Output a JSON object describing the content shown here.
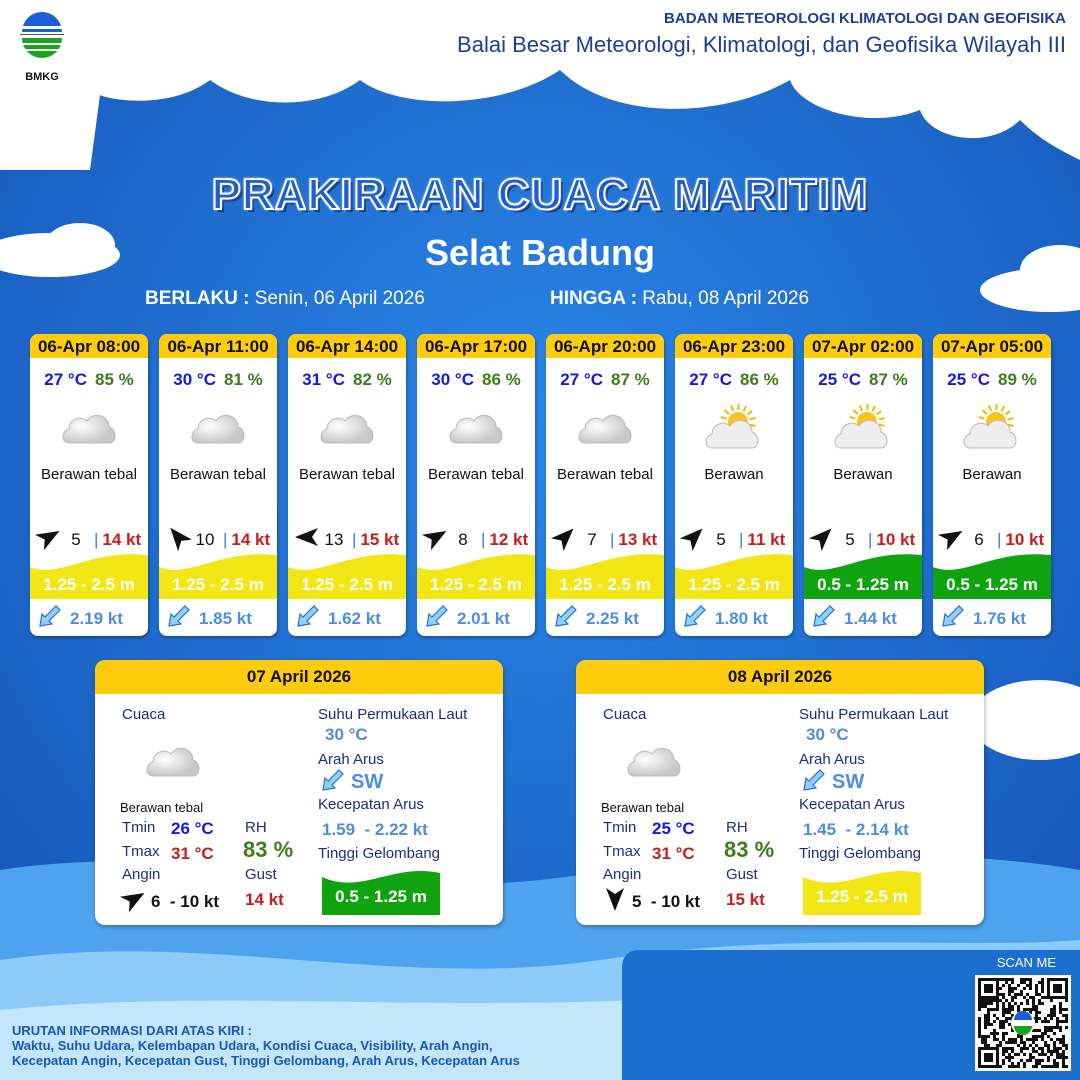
{
  "header": {
    "logo_text": "BMKG",
    "org_line1": "BADAN METEOROLOGI KLIMATOLOGI DAN GEOFISIKA",
    "org_line2": "Balai Besar Meteorologi, Klimatologi, dan Geofisika Wilayah III"
  },
  "title": "PRAKIRAAN CUACA MARITIM",
  "location": "Selat Badung",
  "period": {
    "from_label": "BERLAKU :",
    "from_value": "Senin, 06 April 2026",
    "to_label": "HINGGA :",
    "to_value": "Rabu, 08 April 2026"
  },
  "colors": {
    "header_yellow": "#ffcc0d",
    "wave_yellow": "#f2e614",
    "wave_green": "#0fa30f",
    "background": "#1f6fd3"
  },
  "forecasts": [
    {
      "time": "06-Apr 08:00",
      "temp": "27 °C",
      "rh": "85 %",
      "icon": "cloud-heavy-icon",
      "condition": "Berawan tebal",
      "wind_speed": "5",
      "gust": "14 kt",
      "wave": "1.25 - 2.5 m",
      "wave_color": "#f2e614",
      "current": "2.19 kt"
    },
    {
      "time": "06-Apr 11:00",
      "temp": "30 °C",
      "rh": "81 %",
      "icon": "cloud-heavy-icon",
      "condition": "Berawan tebal",
      "wind_speed": "10",
      "gust": "14 kt",
      "wave": "1.25 - 2.5 m",
      "wave_color": "#f2e614",
      "current": "1.85 kt"
    },
    {
      "time": "06-Apr 14:00",
      "temp": "31 °C",
      "rh": "82 %",
      "icon": "cloud-heavy-icon",
      "condition": "Berawan tebal",
      "wind_speed": "13",
      "gust": "15 kt",
      "wave": "1.25 - 2.5 m",
      "wave_color": "#f2e614",
      "current": "1.62 kt"
    },
    {
      "time": "06-Apr 17:00",
      "temp": "30 °C",
      "rh": "86 %",
      "icon": "cloud-heavy-icon",
      "condition": "Berawan tebal",
      "wind_speed": "8",
      "gust": "12 kt",
      "wave": "1.25 - 2.5 m",
      "wave_color": "#f2e614",
      "current": "2.01 kt"
    },
    {
      "time": "06-Apr 20:00",
      "temp": "27 °C",
      "rh": "87 %",
      "icon": "cloud-heavy-icon",
      "condition": "Berawan tebal",
      "wind_speed": "7",
      "gust": "13 kt",
      "wave": "1.25 - 2.5 m",
      "wave_color": "#f2e614",
      "current": "2.25 kt"
    },
    {
      "time": "06-Apr 23:00",
      "temp": "27 °C",
      "rh": "86 %",
      "icon": "partly-cloudy-icon",
      "condition": "Berawan",
      "wind_speed": "5",
      "gust": "11 kt",
      "wave": "1.25 - 2.5 m",
      "wave_color": "#f2e614",
      "current": "1.80 kt"
    },
    {
      "time": "07-Apr 02:00",
      "temp": "25 °C",
      "rh": "87 %",
      "icon": "partly-cloudy-icon",
      "condition": "Berawan",
      "wind_speed": "5",
      "gust": "10 kt",
      "wave": "0.5 - 1.25 m",
      "wave_color": "#0fa30f",
      "current": "1.44 kt"
    },
    {
      "time": "07-Apr 05:00",
      "temp": "25 °C",
      "rh": "89 %",
      "icon": "partly-cloudy-icon",
      "condition": "Berawan",
      "wind_speed": "6",
      "gust": "10 kt",
      "wave": "0.5 - 1.25 m",
      "wave_color": "#0fa30f",
      "current": "1.76 kt"
    }
  ],
  "daily": [
    {
      "date": "07 April 2026",
      "weather_label": "Cuaca",
      "condition": "Berawan tebal",
      "tmin_label": "Tmin",
      "tmin": "26 °C",
      "tmax_label": "Tmax",
      "tmax": "31 °C",
      "rh_label": "RH",
      "rh": "83 %",
      "wind_label": "Angin",
      "wind": "6  - 10 kt",
      "gust_label": "Gust",
      "gust": "14 kt",
      "sst_label": "Suhu Permukaan Laut",
      "sst": "30 °C",
      "current_dir_label": "Arah Arus",
      "current_dir": "SW",
      "current_speed_label": "Kecepatan Arus",
      "current_speed": "1.59  - 2.22 kt",
      "wave_label": "Tinggi Gelombang",
      "wave": "0.5 - 1.25 m",
      "wave_color": "#0fa30f"
    },
    {
      "date": "08 April 2026",
      "weather_label": "Cuaca",
      "condition": "Berawan tebal",
      "tmin_label": "Tmin",
      "tmin": "25 °C",
      "tmax_label": "Tmax",
      "tmax": "31 °C",
      "rh_label": "RH",
      "rh": "83 %",
      "wind_label": "Angin",
      "wind": "5  - 10 kt",
      "gust_label": "Gust",
      "gust": "15 kt",
      "sst_label": "Suhu Permukaan Laut",
      "sst": "30 °C",
      "current_dir_label": "Arah Arus",
      "current_dir": "SW",
      "current_speed_label": "Kecepatan Arus",
      "current_speed": "1.45  - 2.14 kt",
      "wave_label": "Tinggi Gelombang",
      "wave": "1.25 - 2.5 m",
      "wave_color": "#f2e614"
    }
  ],
  "footer": {
    "legend_title": "URUTAN INFORMASI DARI ATAS KIRI :",
    "legend_line1": "Waktu, Suhu Udara, Kelembapan Udara, Kondisi Cuaca, Visibility, Arah Angin,",
    "legend_line2": "Kecepatan Angin, Kecepatan Gust, Tinggi Gelombang, Arah Arus, Kecepatan Arus",
    "scan_label": "SCAN ME"
  }
}
